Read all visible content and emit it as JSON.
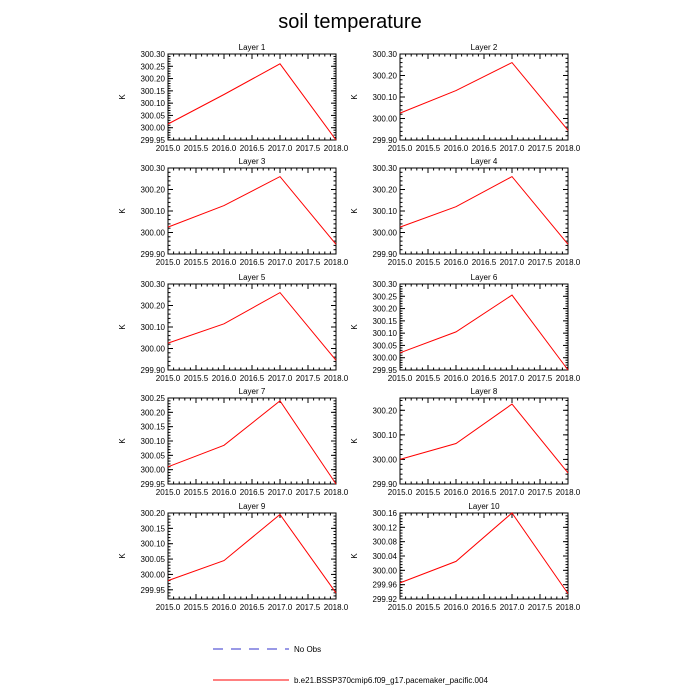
{
  "figure_title": "soil temperature",
  "colors": {
    "model": "#ff0000",
    "obs": "#3333cc",
    "axes": "#000000"
  },
  "legend": {
    "entries": [
      {
        "label": "No Obs",
        "style": "dashed",
        "color": "#3333cc"
      },
      {
        "label": "b.e21.BSSP370cmip6.f09_g17.pacemaker_pacific.004",
        "style": "solid",
        "color": "#ff0000"
      }
    ]
  },
  "chart_data": [
    {
      "type": "line",
      "title": "Layer 1",
      "ylabel": "K",
      "xlim": [
        2015.0,
        2018.0
      ],
      "ylim": [
        299.95,
        300.3
      ],
      "xticks": [
        "2015.0",
        "2015.5",
        "2016.0",
        "2016.5",
        "2017.0",
        "2017.5",
        "2018.0"
      ],
      "yticks": [
        "299.95",
        "300.00",
        "300.05",
        "300.10",
        "300.15",
        "300.20",
        "300.25",
        "300.30"
      ],
      "series": [
        {
          "name": "b.e21.BSSP370cmip6.f09_g17.pacemaker_pacific.004",
          "x": [
            2015.0,
            2016.0,
            2017.0,
            2018.0
          ],
          "y": [
            300.015,
            300.135,
            300.26,
            299.95
          ]
        }
      ]
    },
    {
      "type": "line",
      "title": "Layer 2",
      "ylabel": "K",
      "xlim": [
        2015.0,
        2018.0
      ],
      "ylim": [
        299.9,
        300.3
      ],
      "xticks": [
        "2015.0",
        "2015.5",
        "2016.0",
        "2016.5",
        "2017.0",
        "2017.5",
        "2018.0"
      ],
      "yticks": [
        "299.90",
        "300.00",
        "300.10",
        "300.20",
        "300.30"
      ],
      "series": [
        {
          "name": "b.e21.BSSP370cmip6.f09_g17.pacemaker_pacific.004",
          "x": [
            2015.0,
            2016.0,
            2017.0,
            2018.0
          ],
          "y": [
            300.025,
            300.13,
            300.26,
            299.945
          ]
        }
      ]
    },
    {
      "type": "line",
      "title": "Layer 3",
      "ylabel": "K",
      "xlim": [
        2015.0,
        2018.0
      ],
      "ylim": [
        299.9,
        300.3
      ],
      "xticks": [
        "2015.0",
        "2015.5",
        "2016.0",
        "2016.5",
        "2017.0",
        "2017.5",
        "2018.0"
      ],
      "yticks": [
        "299.90",
        "300.00",
        "300.10",
        "300.20",
        "300.30"
      ],
      "series": [
        {
          "name": "b.e21.BSSP370cmip6.f09_g17.pacemaker_pacific.004",
          "x": [
            2015.0,
            2016.0,
            2017.0,
            2018.0
          ],
          "y": [
            300.025,
            300.125,
            300.26,
            299.945
          ]
        }
      ]
    },
    {
      "type": "line",
      "title": "Layer 4",
      "ylabel": "K",
      "xlim": [
        2015.0,
        2018.0
      ],
      "ylim": [
        299.9,
        300.3
      ],
      "xticks": [
        "2015.0",
        "2015.5",
        "2016.0",
        "2016.5",
        "2017.0",
        "2017.5",
        "2018.0"
      ],
      "yticks": [
        "299.90",
        "300.00",
        "300.10",
        "300.20",
        "300.30"
      ],
      "series": [
        {
          "name": "b.e21.BSSP370cmip6.f09_g17.pacemaker_pacific.004",
          "x": [
            2015.0,
            2016.0,
            2017.0,
            2018.0
          ],
          "y": [
            300.025,
            300.12,
            300.26,
            299.945
          ]
        }
      ]
    },
    {
      "type": "line",
      "title": "Layer 5",
      "ylabel": "K",
      "xlim": [
        2015.0,
        2018.0
      ],
      "ylim": [
        299.9,
        300.3
      ],
      "xticks": [
        "2015.0",
        "2015.5",
        "2016.0",
        "2016.5",
        "2017.0",
        "2017.5",
        "2018.0"
      ],
      "yticks": [
        "299.90",
        "300.00",
        "300.10",
        "300.20",
        "300.30"
      ],
      "series": [
        {
          "name": "b.e21.BSSP370cmip6.f09_g17.pacemaker_pacific.004",
          "x": [
            2015.0,
            2016.0,
            2017.0,
            2018.0
          ],
          "y": [
            300.025,
            300.115,
            300.26,
            299.945
          ]
        }
      ]
    },
    {
      "type": "line",
      "title": "Layer 6",
      "ylabel": "K",
      "xlim": [
        2015.0,
        2018.0
      ],
      "ylim": [
        299.95,
        300.3
      ],
      "xticks": [
        "2015.0",
        "2015.5",
        "2016.0",
        "2016.5",
        "2017.0",
        "2017.5",
        "2018.0"
      ],
      "yticks": [
        "299.95",
        "300.00",
        "300.05",
        "300.10",
        "300.15",
        "300.20",
        "300.25",
        "300.30"
      ],
      "series": [
        {
          "name": "b.e21.BSSP370cmip6.f09_g17.pacemaker_pacific.004",
          "x": [
            2015.0,
            2016.0,
            2017.0,
            2018.0
          ],
          "y": [
            300.02,
            300.105,
            300.255,
            299.95
          ]
        }
      ]
    },
    {
      "type": "line",
      "title": "Layer 7",
      "ylabel": "K",
      "xlim": [
        2015.0,
        2018.0
      ],
      "ylim": [
        299.95,
        300.25
      ],
      "xticks": [
        "2015.0",
        "2015.5",
        "2016.0",
        "2016.5",
        "2017.0",
        "2017.5",
        "2018.0"
      ],
      "yticks": [
        "299.95",
        "300.00",
        "300.05",
        "300.10",
        "300.15",
        "300.20",
        "300.25"
      ],
      "series": [
        {
          "name": "b.e21.BSSP370cmip6.f09_g17.pacemaker_pacific.004",
          "x": [
            2015.0,
            2016.0,
            2017.0,
            2018.0
          ],
          "y": [
            300.01,
            300.085,
            300.24,
            299.95
          ]
        }
      ]
    },
    {
      "type": "line",
      "title": "Layer 8",
      "ylabel": "K",
      "xlim": [
        2015.0,
        2018.0
      ],
      "ylim": [
        299.9,
        300.25
      ],
      "xticks": [
        "2015.0",
        "2015.5",
        "2016.0",
        "2016.5",
        "2017.0",
        "2017.5",
        "2018.0"
      ],
      "yticks": [
        "299.90",
        "300.00",
        "300.10",
        "300.20"
      ],
      "series": [
        {
          "name": "b.e21.BSSP370cmip6.f09_g17.pacemaker_pacific.004",
          "x": [
            2015.0,
            2016.0,
            2017.0,
            2018.0
          ],
          "y": [
            300.0,
            300.065,
            300.225,
            299.945
          ]
        }
      ]
    },
    {
      "type": "line",
      "title": "Layer 9",
      "ylabel": "K",
      "xlim": [
        2015.0,
        2018.0
      ],
      "ylim": [
        299.92,
        300.2
      ],
      "xticks": [
        "2015.0",
        "2015.5",
        "2016.0",
        "2016.5",
        "2017.0",
        "2017.5",
        "2018.0"
      ],
      "yticks": [
        "299.95",
        "300.00",
        "300.05",
        "300.10",
        "300.15",
        "300.20"
      ],
      "series": [
        {
          "name": "b.e21.BSSP370cmip6.f09_g17.pacemaker_pacific.004",
          "x": [
            2015.0,
            2016.0,
            2017.0,
            2018.0
          ],
          "y": [
            299.98,
            300.045,
            300.195,
            299.94
          ]
        }
      ]
    },
    {
      "type": "line",
      "title": "Layer 10",
      "ylabel": "K",
      "xlim": [
        2015.0,
        2018.0
      ],
      "ylim": [
        299.92,
        300.16
      ],
      "xticks": [
        "2015.0",
        "2015.5",
        "2016.0",
        "2016.5",
        "2017.0",
        "2017.5",
        "2018.0"
      ],
      "yticks": [
        "299.92",
        "299.96",
        "300.00",
        "300.04",
        "300.08",
        "300.12",
        "300.16"
      ],
      "series": [
        {
          "name": "b.e21.BSSP370cmip6.f09_g17.pacemaker_pacific.004",
          "x": [
            2015.0,
            2016.0,
            2017.0,
            2018.0
          ],
          "y": [
            299.965,
            300.025,
            300.16,
            299.935
          ]
        }
      ]
    }
  ]
}
